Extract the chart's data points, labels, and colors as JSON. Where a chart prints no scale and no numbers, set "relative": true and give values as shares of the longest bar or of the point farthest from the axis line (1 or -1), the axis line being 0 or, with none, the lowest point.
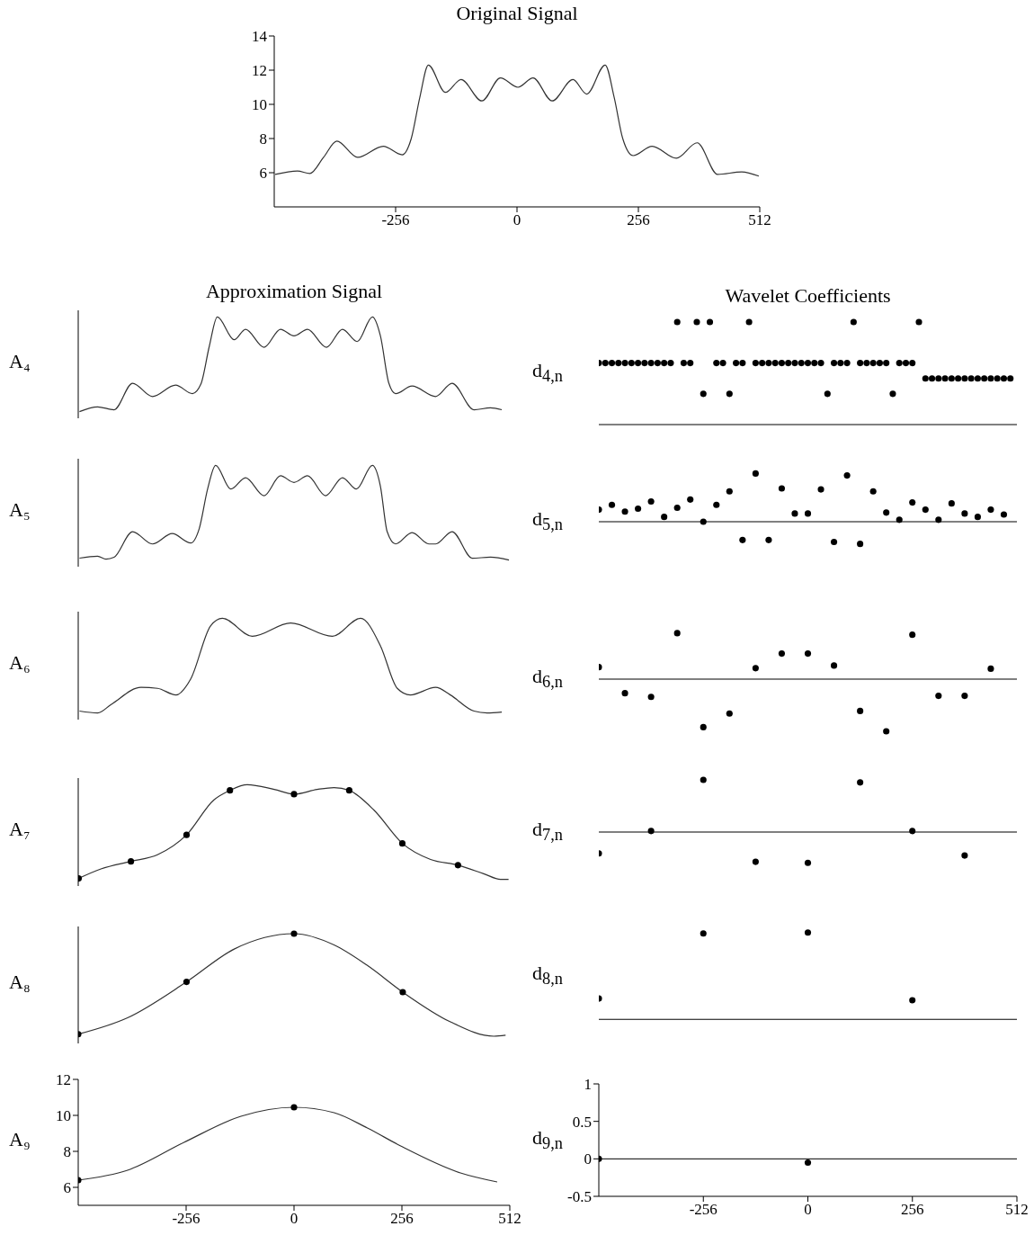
{
  "chart_data": [
    {
      "type": "line",
      "title": "Original Signal",
      "xlim": [
        -512,
        512
      ],
      "xticks": [
        -256,
        0,
        256,
        512
      ],
      "ylim": [
        4,
        14
      ],
      "yticks": [
        6,
        8,
        10,
        12,
        14
      ],
      "series": [
        {
          "color": "#333333",
          "marker": "none",
          "x": [
            -510,
            -463,
            -437,
            -408,
            -380,
            -336,
            -282,
            -242,
            -223,
            -205,
            -187,
            -151,
            -118,
            -74,
            -35,
            2,
            34,
            74,
            118,
            147,
            186,
            205,
            223,
            245,
            285,
            336,
            380,
            423,
            474,
            510
          ],
          "values": [
            5.9,
            6.1,
            5.95,
            6.9,
            7.85,
            6.9,
            7.55,
            7.05,
            8.0,
            10.4,
            12.3,
            10.7,
            11.45,
            10.2,
            11.55,
            11.0,
            11.55,
            10.2,
            11.45,
            10.6,
            12.3,
            10.4,
            8.0,
            7.0,
            7.55,
            6.85,
            7.75,
            5.9,
            6.05,
            5.8
          ]
        }
      ]
    },
    {
      "type": "line",
      "title": "Approximation Signal",
      "ylabel": "A₄",
      "relative": true,
      "xlim": [
        -512,
        512
      ],
      "tick_labels": false,
      "series": [
        {
          "color": "#333333",
          "marker": "none",
          "x": [
            -509,
            -466,
            -427,
            -383,
            -336,
            -281,
            -241,
            -221,
            -201,
            -182,
            -142,
            -115,
            -71,
            -32,
            0,
            32,
            77,
            115,
            150,
            186,
            205,
            225,
            241,
            280,
            336,
            375,
            427,
            466,
            493
          ],
          "values": [
            0,
            0.05,
            0.02,
            0.3,
            0.16,
            0.28,
            0.19,
            0.29,
            0.69,
            1.0,
            0.76,
            0.87,
            0.68,
            0.87,
            0.8,
            0.87,
            0.68,
            0.87,
            0.74,
            1.0,
            0.8,
            0.3,
            0.19,
            0.27,
            0.16,
            0.3,
            0.02,
            0.04,
            0.02
          ]
        }
      ]
    },
    {
      "type": "scatter",
      "title": "Wavelet Coefficients",
      "ylabel": "d$_{4,n}$",
      "relative": true,
      "xlim": [
        -512,
        512
      ],
      "tick_labels": false,
      "series": [
        {
          "color": "#000000",
          "marker": "circle",
          "x": [
            -512,
            -496,
            -480,
            -464,
            -448,
            -432,
            -416,
            -400,
            -384,
            -368,
            -352,
            -336,
            -320,
            -304,
            -288,
            -272,
            -256,
            -240,
            -224,
            -208,
            -192,
            -176,
            -160,
            -144,
            -128,
            -112,
            -96,
            -80,
            -64,
            -48,
            -32,
            -16,
            0,
            16,
            32,
            48,
            64,
            80,
            96,
            112,
            128,
            144,
            160,
            176,
            192,
            208,
            224,
            240,
            256,
            272,
            288,
            304,
            320,
            336,
            352,
            368,
            384,
            400,
            416,
            432,
            448,
            464,
            480,
            496
          ],
          "values": [
            0.6,
            0.6,
            0.6,
            0.6,
            0.6,
            0.6,
            0.6,
            0.6,
            0.6,
            0.6,
            0.6,
            0.6,
            1,
            0.6,
            0.6,
            1,
            0.3,
            1,
            0.6,
            0.6,
            0.3,
            0.6,
            0.6,
            1,
            0.6,
            0.6,
            0.6,
            0.6,
            0.6,
            0.6,
            0.6,
            0.6,
            0.6,
            0.6,
            0.6,
            0.3,
            0.6,
            0.6,
            0.6,
            1,
            0.6,
            0.6,
            0.6,
            0.6,
            0.6,
            0.3,
            0.6,
            0.6,
            0.6,
            1,
            0.45,
            0.45,
            0.45,
            0.45,
            0.45,
            0.45,
            0.45,
            0.45,
            0.45,
            0.45,
            0.45,
            0.45,
            0.45,
            0.45
          ]
        }
      ]
    },
    {
      "type": "line",
      "ylabel": "A₅",
      "relative": true,
      "xlim": [
        -512,
        512
      ],
      "tick_labels": false,
      "series": [
        {
          "color": "#333333",
          "marker": "none",
          "x": [
            -509,
            -466,
            -446,
            -427,
            -383,
            -336,
            -289,
            -245,
            -225,
            -205,
            -186,
            -150,
            -115,
            -71,
            -32,
            0,
            32,
            75,
            115,
            148,
            186,
            205,
            221,
            241,
            280,
            320,
            336,
            375,
            423,
            466,
            510
          ],
          "values": [
            0.02,
            0.04,
            0.01,
            0.03,
            0.3,
            0.17,
            0.28,
            0.18,
            0.33,
            0.75,
            1.0,
            0.75,
            0.87,
            0.68,
            0.89,
            0.82,
            0.89,
            0.68,
            0.87,
            0.75,
            1.0,
            0.78,
            0.3,
            0.17,
            0.29,
            0.17,
            0.17,
            0.3,
            0.02,
            0.03,
            0
          ]
        }
      ]
    },
    {
      "type": "scatter",
      "ylabel": "d$_{5,n}$",
      "relative": true,
      "xlim": [
        -512,
        512
      ],
      "tick_labels": false,
      "series": [
        {
          "color": "#000000",
          "marker": "circle",
          "x": [
            -512,
            -480,
            -448,
            -416,
            -384,
            -352,
            -320,
            -288,
            -256,
            -224,
            -192,
            -160,
            -128,
            -96,
            -64,
            -32,
            0,
            32,
            64,
            96,
            128,
            160,
            192,
            224,
            256,
            288,
            320,
            352,
            384,
            416,
            448,
            480
          ],
          "values": [
            0.25,
            0.35,
            0.21,
            0.27,
            0.42,
            0.1,
            0.29,
            0.46,
            0,
            0.35,
            0.63,
            -0.38,
            1.0,
            -0.38,
            0.69,
            0.17,
            0.17,
            0.67,
            -0.42,
            0.96,
            -0.46,
            0.63,
            0.19,
            0.04,
            0.4,
            0.25,
            0.04,
            0.38,
            0.17,
            0.1,
            0.25,
            0.15
          ]
        }
      ]
    },
    {
      "type": "line",
      "ylabel": "A₆",
      "relative": true,
      "xlim": [
        -512,
        512
      ],
      "tick_labels": false,
      "series": [
        {
          "color": "#333333",
          "marker": "none",
          "x": [
            -509,
            -466,
            -434,
            -363,
            -324,
            -280,
            -245,
            -198,
            -170,
            -99,
            -8,
            91,
            158,
            205,
            245,
            276,
            336,
            371,
            427,
            458,
            493
          ],
          "values": [
            0.02,
            0,
            0.09,
            0.27,
            0.26,
            0.19,
            0.36,
            0.92,
            1.0,
            0.81,
            0.95,
            0.81,
            1.0,
            0.71,
            0.26,
            0.19,
            0.27,
            0.19,
            0.02,
            0,
            0.01
          ]
        }
      ]
    },
    {
      "type": "scatter",
      "ylabel": "d$_{6,n}$",
      "relative": true,
      "xlim": [
        -512,
        512
      ],
      "tick_labels": false,
      "series": [
        {
          "color": "#000000",
          "marker": "circle",
          "x": [
            -512,
            -448,
            -384,
            -320,
            -256,
            -192,
            -128,
            -64,
            0,
            64,
            128,
            192,
            256,
            320,
            384,
            448
          ],
          "values": [
            0.23,
            -0.27,
            -0.34,
            0.88,
            -0.92,
            -0.66,
            0.21,
            0.49,
            0.49,
            0.26,
            -0.61,
            -1,
            0.85,
            -0.32,
            -0.32,
            0.2
          ]
        }
      ]
    },
    {
      "type": "line",
      "ylabel": "A₇",
      "relative": true,
      "xlim": [
        -512,
        512
      ],
      "tick_labels": false,
      "series": [
        {
          "color": "#333333",
          "marker": "none",
          "x": [
            -511,
            -458,
            -387,
            -324,
            -255,
            -190,
            -152,
            -111,
            -47,
            0,
            55,
            95,
            131,
            190,
            257,
            324,
            389,
            450,
            490,
            509
          ],
          "values": [
            0.01,
            0.11,
            0.19,
            0.26,
            0.47,
            0.84,
            0.94,
            1.0,
            0.95,
            0.9,
            0.95,
            0.97,
            0.94,
            0.73,
            0.38,
            0.21,
            0.15,
            0.06,
            0,
            0
          ]
        },
        {
          "type": "scatter",
          "color": "#000000",
          "marker": "circle",
          "x": [
            -511,
            -387,
            -255,
            -152,
            0,
            131,
            257,
            389
          ],
          "values": [
            0.01,
            0.19,
            0.47,
            0.94,
            0.9,
            0.94,
            0.38,
            0.15
          ]
        }
      ]
    },
    {
      "type": "scatter",
      "ylabel": "d$_{7,n}$",
      "relative": true,
      "xlim": [
        -512,
        512
      ],
      "tick_labels": false,
      "series": [
        {
          "color": "#000000",
          "marker": "circle",
          "x": [
            -512,
            -384,
            -256,
            -128,
            0,
            128,
            256,
            384
          ],
          "values": [
            -0.41,
            0.02,
            1.0,
            -0.57,
            -0.59,
            0.95,
            0.02,
            -0.45
          ]
        }
      ]
    },
    {
      "type": "line",
      "ylabel": "A₈",
      "relative": true,
      "xlim": [
        -512,
        512
      ],
      "tick_labels": false,
      "series": [
        {
          "color": "#333333",
          "marker": "none",
          "x": [
            -512,
            -395,
            -255,
            -142,
            0,
            95,
            174,
            258,
            371,
            474,
            502
          ],
          "values": [
            0.02,
            0.18,
            0.53,
            0.85,
            1.0,
            0.89,
            0.69,
            0.43,
            0.14,
            0,
            0.01
          ]
        },
        {
          "type": "scatter",
          "color": "#000000",
          "marker": "circle",
          "x": [
            -512,
            -255,
            0,
            258
          ],
          "values": [
            0.02,
            0.53,
            1.0,
            0.43
          ]
        }
      ]
    },
    {
      "type": "scatter",
      "ylabel": "d$_{8,n}$",
      "relative": true,
      "xlim": [
        -512,
        512
      ],
      "tick_labels": false,
      "series": [
        {
          "color": "#000000",
          "marker": "circle",
          "x": [
            -512,
            -256,
            0,
            256
          ],
          "values": [
            0.24,
            0.99,
            1.0,
            0.22
          ]
        }
      ]
    },
    {
      "type": "line",
      "ylabel": "A₉",
      "xlim": [
        -512,
        512
      ],
      "xticks": [
        -256,
        0,
        256,
        512
      ],
      "ylim": [
        5,
        12
      ],
      "yticks": [
        6,
        8,
        10,
        12
      ],
      "series": [
        {
          "color": "#333333",
          "marker": "none",
          "x": [
            -512,
            -395,
            -261,
            -126,
            0,
            95,
            174,
            253,
            395,
            482
          ],
          "values": [
            6.4,
            6.95,
            8.5,
            9.95,
            10.45,
            10.15,
            9.3,
            8.3,
            6.8,
            6.3
          ]
        },
        {
          "type": "scatter",
          "color": "#000000",
          "marker": "circle",
          "x": [
            -512,
            0
          ],
          "values": [
            6.4,
            10.45
          ]
        }
      ]
    },
    {
      "type": "scatter",
      "ylabel": "d$_{9,n}$",
      "xlim": [
        -512,
        512
      ],
      "xticks": [
        -256,
        0,
        256,
        512
      ],
      "ylim": [
        -0.5,
        1
      ],
      "yticks": [
        -0.5,
        0,
        0.5,
        1
      ],
      "ref_lines": [
        {
          "axis": "y",
          "value": 0,
          "color": "#000000"
        }
      ],
      "series": [
        {
          "color": "#000000",
          "marker": "circle",
          "x": [
            -512,
            0
          ],
          "values": [
            0,
            -0.05
          ]
        }
      ]
    }
  ]
}
